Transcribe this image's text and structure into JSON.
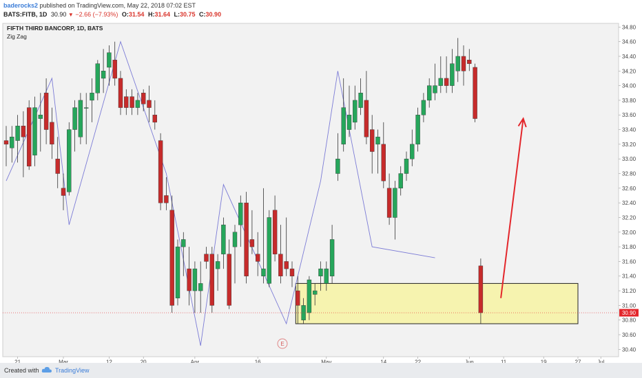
{
  "header": {
    "author": "baderocks2",
    "published_text": "published on TradingView.com, May 22, 2018 07:02 EST",
    "symbol": "BATS:FITB, 1D",
    "last": "30.90",
    "change": "−2.66 (−7.93%)",
    "open_label": "O:",
    "open": "31.54",
    "high_label": "H:",
    "high": "31.64",
    "low_label": "L:",
    "low": "30.75",
    "close_label": "C:",
    "close": "30.90"
  },
  "legend": {
    "title": "FIFTH THIRD BANCORP, 1D, BATS",
    "indicator": "Zig Zag"
  },
  "price_label": "30.90",
  "event_marker": "E",
  "footer": {
    "created_with": "Created with",
    "brand": "TradingView"
  },
  "colors": {
    "up": "#26a65b",
    "down": "#c62b2b",
    "zigzag": "#7b7bd6",
    "zone_fill": "#f7f3a3",
    "arrow": "#e3262b",
    "price_tag": "#e3262b",
    "plot_bg": "#f2f2f2"
  },
  "chart_data": {
    "type": "candlestick",
    "title": "FIFTH THIRD BANCORP, 1D, BATS",
    "y_ticks": [
      "34.80",
      "34.60",
      "34.40",
      "34.20",
      "34.00",
      "33.80",
      "33.60",
      "33.40",
      "33.20",
      "33.00",
      "32.80",
      "32.60",
      "32.40",
      "32.20",
      "32.00",
      "31.80",
      "31.60",
      "31.40",
      "31.20",
      "31.00",
      "30.80",
      "30.60",
      "30.40"
    ],
    "ylim": [
      30.3,
      34.85
    ],
    "x_labels": [
      {
        "label": "21",
        "i": 2
      },
      {
        "label": "Mar",
        "i": 10
      },
      {
        "label": "12",
        "i": 18
      },
      {
        "label": "20",
        "i": 24
      },
      {
        "label": "Apr",
        "i": 33
      },
      {
        "label": "16",
        "i": 44
      },
      {
        "label": "May",
        "i": 56
      },
      {
        "label": "14",
        "i": 66
      },
      {
        "label": "22",
        "i": 72
      },
      {
        "label": "Jun",
        "i": 81
      },
      {
        "label": "11",
        "i": 87
      },
      {
        "label": "19",
        "i": 94
      },
      {
        "label": "27",
        "i": 100
      },
      {
        "label": "Jul",
        "i": 104
      }
    ],
    "candles": [
      {
        "o": 33.25,
        "h": 33.45,
        "l": 32.9,
        "c": 33.2
      },
      {
        "o": 33.15,
        "h": 33.45,
        "l": 32.95,
        "c": 33.3
      },
      {
        "o": 33.25,
        "h": 33.6,
        "l": 32.95,
        "c": 33.45
      },
      {
        "o": 33.45,
        "h": 33.65,
        "l": 32.75,
        "c": 33.3
      },
      {
        "o": 33.7,
        "h": 33.8,
        "l": 32.85,
        "c": 32.9
      },
      {
        "o": 33.05,
        "h": 33.85,
        "l": 32.9,
        "c": 33.7
      },
      {
        "o": 33.55,
        "h": 33.9,
        "l": 33.1,
        "c": 33.6
      },
      {
        "o": 33.9,
        "h": 34.1,
        "l": 33.2,
        "c": 33.4
      },
      {
        "o": 33.5,
        "h": 33.7,
        "l": 33.0,
        "c": 33.2
      },
      {
        "o": 33.0,
        "h": 33.3,
        "l": 32.6,
        "c": 32.8
      },
      {
        "o": 32.6,
        "h": 32.8,
        "l": 32.3,
        "c": 32.5
      },
      {
        "o": 32.55,
        "h": 33.5,
        "l": 32.5,
        "c": 33.4
      },
      {
        "o": 33.4,
        "h": 33.8,
        "l": 33.1,
        "c": 33.7
      },
      {
        "o": 33.3,
        "h": 33.9,
        "l": 33.2,
        "c": 33.8
      },
      {
        "o": 33.7,
        "h": 33.9,
        "l": 33.2,
        "c": 33.7
      },
      {
        "o": 33.8,
        "h": 34.1,
        "l": 33.5,
        "c": 33.9
      },
      {
        "o": 33.9,
        "h": 34.35,
        "l": 33.8,
        "c": 34.3
      },
      {
        "o": 34.1,
        "h": 34.5,
        "l": 33.9,
        "c": 34.2
      },
      {
        "o": 34.25,
        "h": 34.55,
        "l": 34.0,
        "c": 34.45
      },
      {
        "o": 34.35,
        "h": 34.6,
        "l": 34.0,
        "c": 34.1
      },
      {
        "o": 34.1,
        "h": 34.2,
        "l": 33.6,
        "c": 33.7
      },
      {
        "o": 33.85,
        "h": 33.95,
        "l": 33.6,
        "c": 33.7
      },
      {
        "o": 33.85,
        "h": 33.95,
        "l": 33.6,
        "c": 33.7
      },
      {
        "o": 33.7,
        "h": 33.9,
        "l": 33.6,
        "c": 33.8
      },
      {
        "o": 33.9,
        "h": 33.95,
        "l": 33.65,
        "c": 33.75
      },
      {
        "o": 33.8,
        "h": 34.0,
        "l": 33.5,
        "c": 33.7
      },
      {
        "o": 33.6,
        "h": 33.8,
        "l": 33.4,
        "c": 33.5
      },
      {
        "o": 33.25,
        "h": 33.35,
        "l": 32.3,
        "c": 32.4
      },
      {
        "o": 32.5,
        "h": 32.75,
        "l": 32.3,
        "c": 32.4
      },
      {
        "o": 32.3,
        "h": 32.5,
        "l": 30.9,
        "c": 31.0
      },
      {
        "o": 31.1,
        "h": 31.9,
        "l": 31.0,
        "c": 31.8
      },
      {
        "o": 31.8,
        "h": 32.0,
        "l": 31.4,
        "c": 31.9
      },
      {
        "o": 31.5,
        "h": 31.8,
        "l": 31.0,
        "c": 31.2
      },
      {
        "o": 31.2,
        "h": 31.6,
        "l": 30.9,
        "c": 31.5
      },
      {
        "o": 31.2,
        "h": 31.6,
        "l": 30.9,
        "c": 31.3
      },
      {
        "o": 31.7,
        "h": 31.8,
        "l": 31.5,
        "c": 31.6
      },
      {
        "o": 31.7,
        "h": 31.8,
        "l": 30.9,
        "c": 31.0
      },
      {
        "o": 31.5,
        "h": 31.7,
        "l": 31.2,
        "c": 31.6
      },
      {
        "o": 31.7,
        "h": 32.2,
        "l": 31.5,
        "c": 32.1
      },
      {
        "o": 31.7,
        "h": 31.9,
        "l": 30.95,
        "c": 31.0
      },
      {
        "o": 31.8,
        "h": 32.1,
        "l": 31.3,
        "c": 32.0
      },
      {
        "o": 32.1,
        "h": 32.5,
        "l": 31.8,
        "c": 32.4
      },
      {
        "o": 32.4,
        "h": 32.55,
        "l": 31.3,
        "c": 31.4
      },
      {
        "o": 31.9,
        "h": 32.3,
        "l": 31.7,
        "c": 31.8
      },
      {
        "o": 31.7,
        "h": 32.0,
        "l": 31.4,
        "c": 31.6
      },
      {
        "o": 31.4,
        "h": 32.6,
        "l": 31.3,
        "c": 31.5
      },
      {
        "o": 31.3,
        "h": 32.3,
        "l": 31.25,
        "c": 32.2
      },
      {
        "o": 32.3,
        "h": 32.5,
        "l": 31.6,
        "c": 31.7
      },
      {
        "o": 31.7,
        "h": 32.1,
        "l": 31.3,
        "c": 31.4
      },
      {
        "o": 31.6,
        "h": 32.2,
        "l": 31.4,
        "c": 31.5
      },
      {
        "o": 31.5,
        "h": 31.6,
        "l": 31.25,
        "c": 31.4
      },
      {
        "o": 31.2,
        "h": 31.4,
        "l": 30.75,
        "c": 31.0
      },
      {
        "o": 30.8,
        "h": 31.1,
        "l": 30.75,
        "c": 31.0
      },
      {
        "o": 30.9,
        "h": 31.4,
        "l": 30.8,
        "c": 31.35
      },
      {
        "o": 31.15,
        "h": 31.3,
        "l": 31.0,
        "c": 31.2
      },
      {
        "o": 31.4,
        "h": 31.6,
        "l": 31.2,
        "c": 31.5
      },
      {
        "o": 31.3,
        "h": 31.6,
        "l": 31.2,
        "c": 31.5
      },
      {
        "o": 31.4,
        "h": 32.1,
        "l": 31.3,
        "c": 31.9
      },
      {
        "o": 32.8,
        "h": 33.35,
        "l": 32.7,
        "c": 33.0
      },
      {
        "o": 33.2,
        "h": 34.1,
        "l": 33.1,
        "c": 33.7
      },
      {
        "o": 33.4,
        "h": 34.0,
        "l": 33.3,
        "c": 33.6
      },
      {
        "o": 33.5,
        "h": 34.0,
        "l": 33.4,
        "c": 33.8
      },
      {
        "o": 33.7,
        "h": 34.1,
        "l": 33.6,
        "c": 33.9
      },
      {
        "o": 33.8,
        "h": 34.2,
        "l": 33.2,
        "c": 33.3
      },
      {
        "o": 33.4,
        "h": 33.6,
        "l": 32.8,
        "c": 33.1
      },
      {
        "o": 33.2,
        "h": 33.4,
        "l": 32.8,
        "c": 33.3
      },
      {
        "o": 33.2,
        "h": 33.5,
        "l": 32.6,
        "c": 32.7
      },
      {
        "o": 32.6,
        "h": 32.8,
        "l": 32.1,
        "c": 32.2
      },
      {
        "o": 32.2,
        "h": 32.7,
        "l": 31.9,
        "c": 32.6
      },
      {
        "o": 32.6,
        "h": 32.9,
        "l": 32.5,
        "c": 32.8
      },
      {
        "o": 32.8,
        "h": 33.1,
        "l": 32.7,
        "c": 33.0
      },
      {
        "o": 33.0,
        "h": 33.4,
        "l": 32.9,
        "c": 33.2
      },
      {
        "o": 33.2,
        "h": 33.7,
        "l": 33.1,
        "c": 33.6
      },
      {
        "o": 33.6,
        "h": 33.9,
        "l": 33.5,
        "c": 33.8
      },
      {
        "o": 33.8,
        "h": 34.1,
        "l": 33.7,
        "c": 34.0
      },
      {
        "o": 33.9,
        "h": 34.3,
        "l": 33.8,
        "c": 34.0
      },
      {
        "o": 34.0,
        "h": 34.4,
        "l": 33.9,
        "c": 34.1
      },
      {
        "o": 34.1,
        "h": 34.4,
        "l": 33.9,
        "c": 34.0
      },
      {
        "o": 34.0,
        "h": 34.5,
        "l": 33.9,
        "c": 34.3
      },
      {
        "o": 34.2,
        "h": 34.65,
        "l": 34.05,
        "c": 34.4
      },
      {
        "o": 34.4,
        "h": 34.55,
        "l": 34.0,
        "c": 34.2
      },
      {
        "o": 34.35,
        "h": 34.5,
        "l": 34.2,
        "c": 34.3
      },
      {
        "o": 34.25,
        "h": 34.3,
        "l": 33.5,
        "c": 33.55
      },
      {
        "o": 31.54,
        "h": 31.64,
        "l": 30.75,
        "c": 30.9
      }
    ],
    "zigzag": [
      {
        "i": 0,
        "p": 32.7
      },
      {
        "i": 8,
        "p": 34.1
      },
      {
        "i": 11,
        "p": 32.1
      },
      {
        "i": 20,
        "p": 34.6
      },
      {
        "i": 28,
        "p": 32.8
      },
      {
        "i": 34,
        "p": 30.45
      },
      {
        "i": 38,
        "p": 32.65
      },
      {
        "i": 49,
        "p": 30.75
      },
      {
        "i": 55,
        "p": 32.7
      },
      {
        "i": 58,
        "p": 34.2
      },
      {
        "i": 64,
        "p": 31.8
      },
      {
        "i": 75,
        "p": 31.65
      }
    ],
    "zone": {
      "from_i": 51,
      "to_i": 100,
      "top": 31.3,
      "bottom": 30.75
    },
    "arrow": {
      "from_i": 87,
      "from_p": 31.1,
      "to_i": 92,
      "to_p": 33.55
    },
    "last_price": 30.9
  }
}
